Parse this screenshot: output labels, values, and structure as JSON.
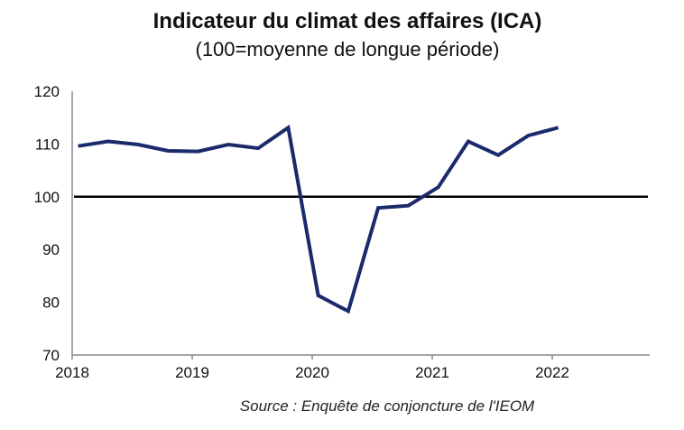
{
  "chart_data": {
    "type": "line",
    "title": "Indicateur du climat des affaires (ICA)",
    "subtitle": "(100=moyenne de longue période)",
    "source": "Source : Enquête de conjoncture de l'IEOM",
    "xlabel": "",
    "ylabel": "",
    "xlim": [
      2018,
      2022.8
    ],
    "ylim": [
      70,
      120
    ],
    "x_ticks": [
      "2018",
      "2019",
      "2020",
      "2021",
      "2022"
    ],
    "y_ticks": [
      "70",
      "80",
      "90",
      "100",
      "110",
      "120"
    ],
    "grid": false,
    "reference_line": {
      "y": 100,
      "color": "#000000"
    },
    "series": [
      {
        "color": "#1b2a6b",
        "x": [
          2018.05,
          2018.3,
          2018.55,
          2018.8,
          2019.05,
          2019.3,
          2019.55,
          2019.8,
          2020.05,
          2020.3,
          2020.55,
          2020.8,
          2021.05,
          2021.3,
          2021.55,
          2021.8,
          2022.05
        ],
        "values": [
          109.6,
          110.5,
          109.9,
          108.7,
          108.6,
          109.9,
          109.2,
          113.1,
          81.3,
          78.3,
          97.9,
          98.3,
          101.8,
          110.5,
          107.9,
          111.6,
          113.1
        ]
      }
    ]
  }
}
